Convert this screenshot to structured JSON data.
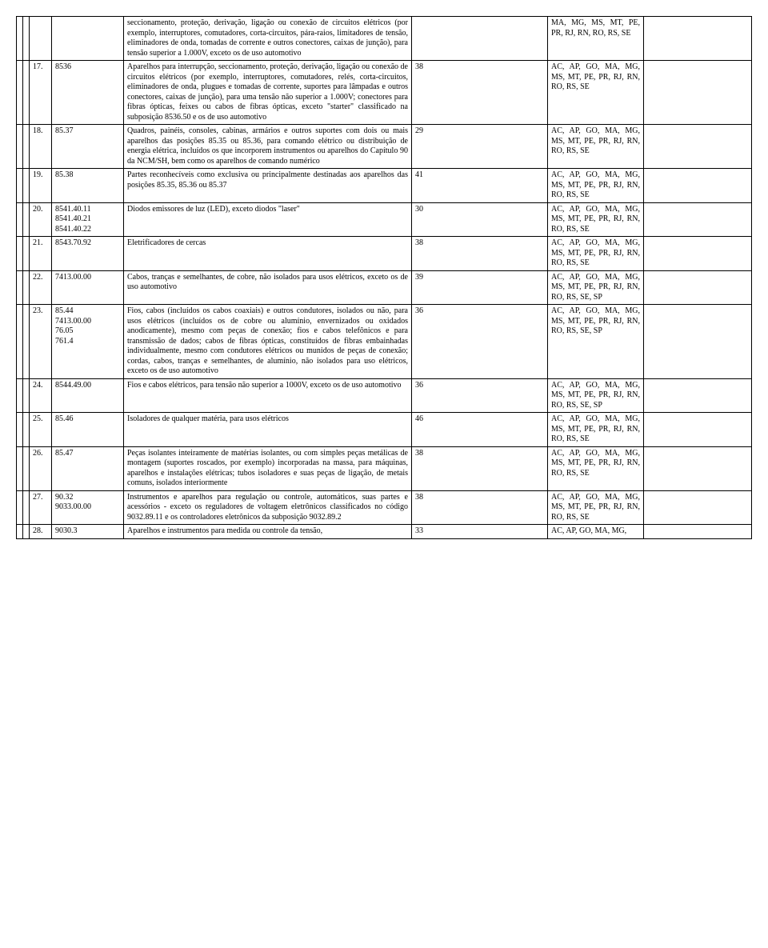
{
  "rows": [
    {
      "num": "",
      "code": "",
      "desc": "seccionamento, proteção, derivação, ligação ou conexão de circuitos elétricos (por exemplo, interruptores, comutadores, corta-circuitos, pára-raios, limitadores de tensão, eliminadores de onda, tomadas de corrente e outros conectores, caixas de junção), para tensão superior a 1.000V, exceto os de uso automotivo",
      "val": "",
      "states": "MA, MG, MS, MT, PE, PR, RJ, RN, RO, RS, SE"
    },
    {
      "num": "17.",
      "code": "8536",
      "desc": "Aparelhos para interrupção, seccionamento, proteção, derivação, ligação ou conexão de circuitos elétricos (por exemplo, interruptores, comutadores, relés, corta-circuitos, eliminadores de onda, plugues e tomadas de corrente, suportes para lâmpadas e outros conectores, caixas de junção), para uma tensão não superior a 1.000V; conectores para fibras ópticas, feixes ou cabos de fibras ópticas, exceto \"starter\" classificado na subposição 8536.50 e os de uso automotivo",
      "val": "38",
      "states": "AC, AP, GO, MA, MG, MS, MT, PE, PR, RJ, RN, RO, RS, SE"
    },
    {
      "num": "18.",
      "code": "85.37",
      "desc": "Quadros, painéis, consoles, cabinas, armários e outros suportes com dois ou mais aparelhos das posições 85.35 ou 85.36, para comando elétrico ou distribuição de energia elétrica, incluídos os que incorporem instrumentos ou aparelhos do Capítulo 90 da NCM/SH, bem como os aparelhos de comando numérico",
      "val": "29",
      "states": "AC, AP, GO, MA, MG, MS, MT, PE, PR, RJ, RN, RO, RS, SE"
    },
    {
      "num": "19.",
      "code": "85.38",
      "desc": "Partes reconhecíveis como exclusiva ou principalmente destinadas aos aparelhos das posições 85.35, 85.36 ou 85.37",
      "val": "41",
      "states": "AC, AP, GO, MA, MG, MS, MT, PE, PR, RJ, RN, RO, RS, SE"
    },
    {
      "num": "20.",
      "code": "8541.40.11\n8541.40.21\n8541.40.22",
      "desc": "Diodos emissores de luz (LED), exceto diodos \"laser\"",
      "val": "30",
      "states": "AC, AP, GO, MA, MG, MS, MT, PE, PR, RJ, RN, RO, RS, SE"
    },
    {
      "num": "21.",
      "code": "8543.70.92",
      "desc": "Eletrificadores de cercas",
      "val": "38",
      "states": "AC, AP, GO, MA, MG, MS, MT, PE, PR, RJ, RN, RO, RS, SE"
    },
    {
      "num": "22.",
      "code": "7413.00.00",
      "desc": "Cabos, tranças e semelhantes, de cobre, não isolados para usos elétricos, exceto os de uso automotivo",
      "val": "39",
      "states": "AC, AP, GO, MA, MG, MS, MT, PE, PR, RJ, RN, RO, RS, SE, SP"
    },
    {
      "num": "23.",
      "code": "85.44\n7413.00.00\n76.05\n761.4",
      "desc": "Fios, cabos (incluídos os cabos coaxiais) e outros condutores, isolados ou não, para usos elétricos (incluídos os de cobre ou alumínio, envernizados ou oxidados anodicamente), mesmo com peças de conexão; fios e cabos telefônicos e para transmissão de dados; cabos de fibras ópticas, constituídos de fibras embainhadas individualmente, mesmo com condutores elétricos ou munidos de peças de conexão; cordas, cabos, tranças e semelhantes, de alumínio, não isolados para uso elétricos, exceto os de uso automotivo",
      "val": "36",
      "states": "AC, AP, GO, MA, MG, MS, MT, PE, PR, RJ, RN, RO, RS, SE, SP"
    },
    {
      "num": "24.",
      "code": "8544.49.00",
      "desc": "Fios e cabos elétricos, para tensão não superior a 1000V, exceto os de uso automotivo",
      "val": "36",
      "states": "AC, AP, GO, MA, MG, MS, MT, PE, PR, RJ, RN, RO, RS, SE, SP"
    },
    {
      "num": "25.",
      "code": "85.46",
      "desc": "Isoladores de qualquer matéria, para usos elétricos",
      "val": "46",
      "states": "AC, AP, GO, MA, MG, MS, MT, PE, PR, RJ, RN, RO, RS, SE"
    },
    {
      "num": "26.",
      "code": "85.47",
      "desc": "Peças isolantes inteiramente de matérias isolantes, ou com simples peças metálicas de montagem (suportes roscados, por exemplo) incorporadas na massa, para máquinas, aparelhos e instalações elétricas; tubos isoladores e suas peças de ligação, de metais comuns, isolados interiormente",
      "val": "38",
      "states": "AC, AP, GO, MA, MG, MS, MT, PE, PR, RJ, RN, RO, RS, SE"
    },
    {
      "num": "27.",
      "code": "90.32\n9033.00.00",
      "desc": "Instrumentos e aparelhos para regulação ou controle, automáticos, suas partes e acessórios - exceto os reguladores de voltagem eletrônicos classificados no código 9032.89.11 e os controladores eletrônicos da subposição 9032.89.2",
      "val": "38",
      "states": "AC, AP, GO, MA, MG, MS, MT, PE, PR, RJ, RN, RO, RS, SE"
    },
    {
      "num": "28.",
      "code": "9030.3",
      "desc": "Aparelhos e instrumentos para medida ou controle da tensão,",
      "val": "33",
      "states": "AC, AP, GO, MA, MG,"
    }
  ]
}
